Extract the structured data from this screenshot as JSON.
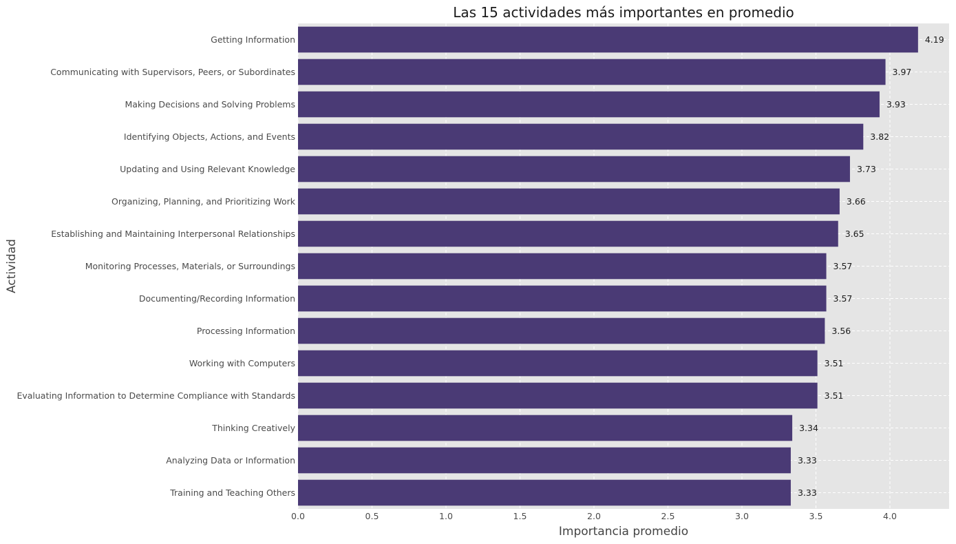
{
  "chart_data": {
    "type": "bar",
    "orientation": "horizontal",
    "title": "Las 15 actividades más importantes en promedio",
    "xlabel": "Importancia promedio",
    "ylabel": "Actividad",
    "categories": [
      "Getting Information",
      "Communicating with Supervisors, Peers, or Subordinates",
      "Making Decisions and Solving Problems",
      "Identifying Objects, Actions, and Events",
      "Updating and Using Relevant Knowledge",
      "Organizing, Planning, and Prioritizing Work",
      "Establishing and Maintaining Interpersonal Relationships",
      "Monitoring Processes, Materials, or Surroundings",
      "Documenting/Recording Information",
      "Processing Information",
      "Working with Computers",
      "Evaluating Information to Determine Compliance with Standards",
      "Thinking Creatively",
      "Analyzing Data or Information",
      "Training and Teaching Others"
    ],
    "values": [
      4.19,
      3.97,
      3.93,
      3.82,
      3.73,
      3.66,
      3.65,
      3.57,
      3.57,
      3.56,
      3.51,
      3.51,
      3.34,
      3.33,
      3.33
    ],
    "data_labels": [
      "4.19",
      "3.97",
      "3.93",
      "3.82",
      "3.73",
      "3.66",
      "3.65",
      "3.57",
      "3.57",
      "3.56",
      "3.51",
      "3.51",
      "3.34",
      "3.33",
      "3.33"
    ],
    "xlim": [
      0,
      4.4
    ],
    "xticks": [
      0,
      0.5,
      1.0,
      1.5,
      2.0,
      2.5,
      3.0,
      3.5,
      4.0
    ],
    "xtick_labels": [
      "0.0",
      "0.5",
      "1.0",
      "1.5",
      "2.0",
      "2.5",
      "3.0",
      "3.5",
      "4.0"
    ],
    "grid": true,
    "colors": {
      "bar": "#4a3a75",
      "plot_background": "#e5e5e5",
      "grid": "#ffffff"
    }
  }
}
